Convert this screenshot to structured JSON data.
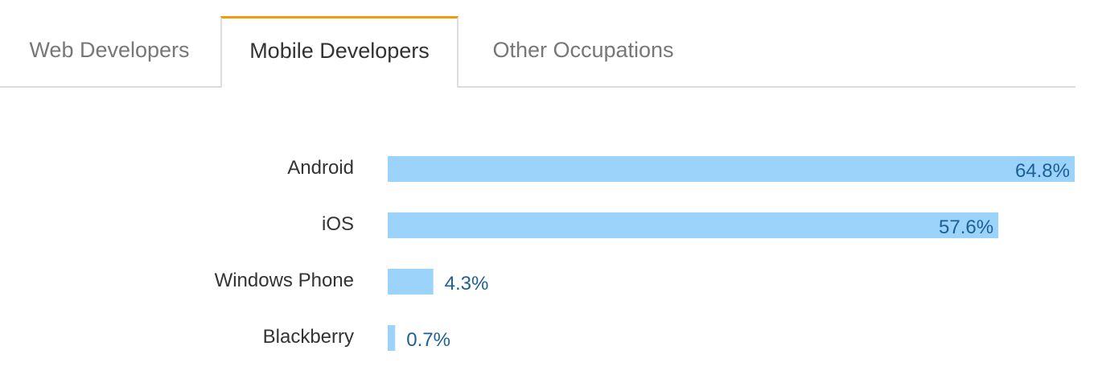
{
  "tabs": [
    {
      "label": "Web Developers",
      "active": false
    },
    {
      "label": "Mobile Developers",
      "active": true
    },
    {
      "label": "Other Occupations",
      "active": false
    }
  ],
  "colors": {
    "accent": "#f49a0a",
    "bar": "#9bd3fb",
    "value_text": "#1d5f96",
    "label_text": "#333333",
    "tab_text": "#777777"
  },
  "chart_data": {
    "type": "bar",
    "orientation": "horizontal",
    "categories": [
      "Android",
      "iOS",
      "Windows Phone",
      "Blackberry"
    ],
    "values": [
      64.8,
      57.6,
      4.3,
      0.7
    ],
    "value_labels": [
      "64.8%",
      "57.6%",
      "4.3%",
      "0.7%"
    ],
    "unit": "%",
    "xlim": [
      0,
      64.8
    ],
    "grid": false,
    "legend": "none"
  }
}
